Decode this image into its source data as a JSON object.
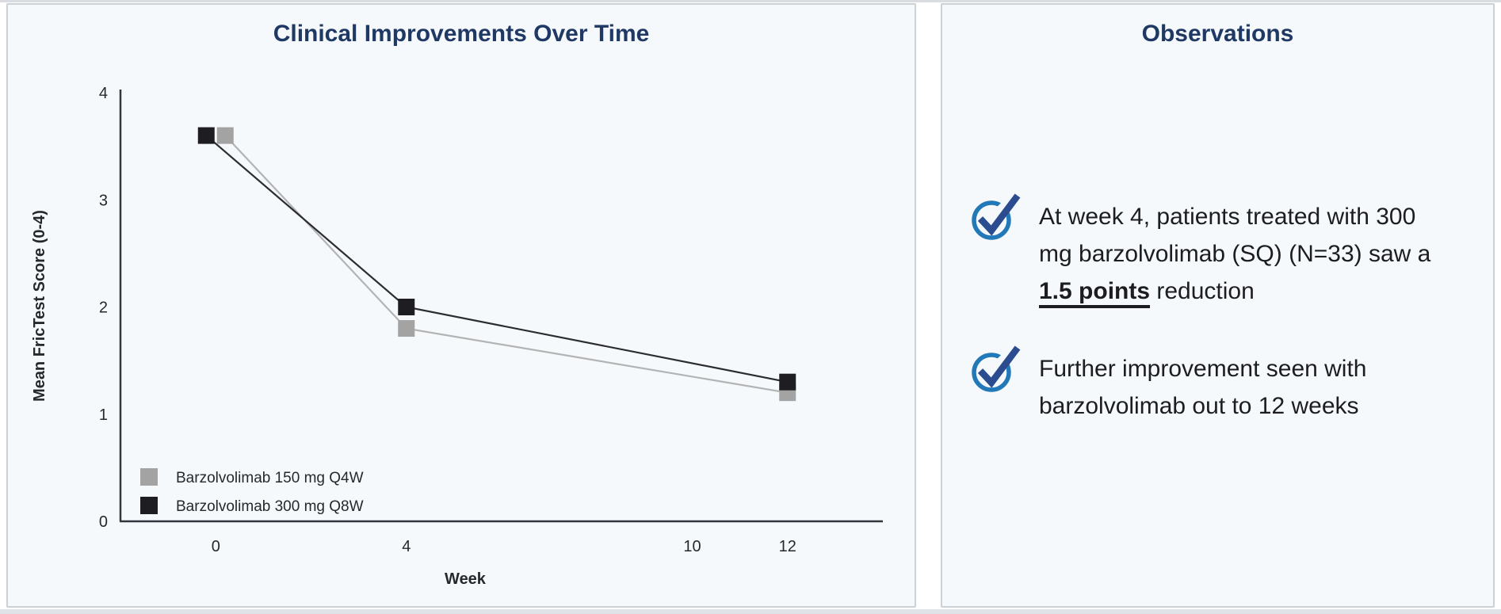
{
  "colors": {
    "page_bg": "#ffffff",
    "panel_bg": "#f5f9fc",
    "panel_border": "#ccd1d6",
    "edge_strip": "#d9dce0",
    "title_navy": "#1f3864",
    "body_text": "#1d1d1f",
    "axis": "#33373d",
    "tick_text": "#26282b",
    "icon_circle": "#2379b8",
    "icon_check": "#2b4d8f"
  },
  "chart_panel": {
    "title": "Clinical Improvements Over Time"
  },
  "chart_data": {
    "type": "line",
    "title": "Clinical Improvements Over Time",
    "xlabel": "Week",
    "ylabel": "Mean FricTest Score (0-4)",
    "x_ticks": [
      0,
      4,
      10,
      12
    ],
    "y_ticks": [
      0,
      1,
      2,
      3,
      4
    ],
    "xlim": [
      -2,
      14
    ],
    "ylim": [
      0,
      4
    ],
    "grid": false,
    "legend_position": "lower-left",
    "marker": "square",
    "series": [
      {
        "name": "Barzolvolimab 150 mg Q4W",
        "color": "#a3a3a3",
        "line_color": "#b3b3b3",
        "x": [
          0,
          4,
          12
        ],
        "values": [
          3.6,
          1.8,
          1.2
        ]
      },
      {
        "name": "Barzolvolimab 300 mg Q8W",
        "color": "#1e1e22",
        "line_color": "#2b2b30",
        "x": [
          0,
          4,
          12
        ],
        "values": [
          3.6,
          2.0,
          1.3
        ]
      }
    ]
  },
  "observations": {
    "title": "Observations",
    "items": [
      {
        "text_before": "At week 4, patients treated with 300 mg barzolvolimab (SQ) (N=33) saw a ",
        "emphasis": "1.5 points",
        "text_after": " reduction"
      },
      {
        "text_before": "Further improvement seen with barzolvolimab out to 12 weeks",
        "emphasis": "",
        "text_after": ""
      }
    ]
  }
}
